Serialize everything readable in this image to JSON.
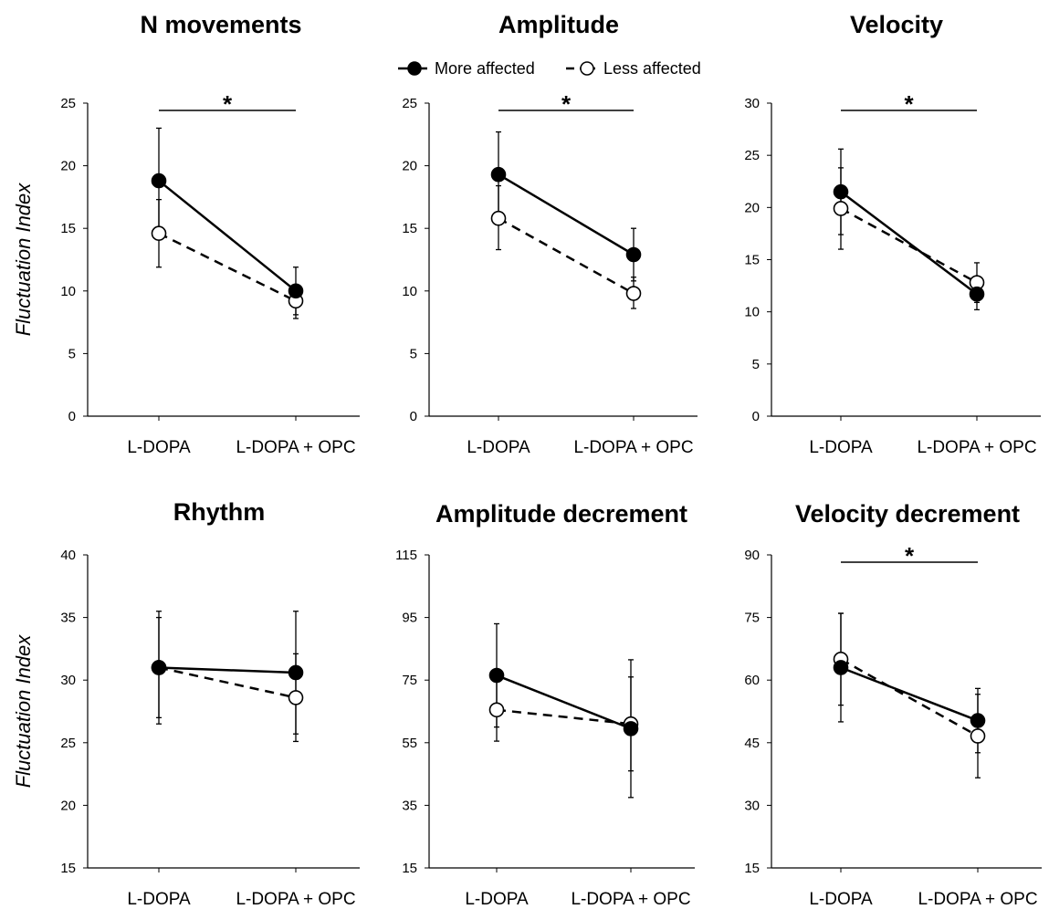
{
  "legend": {
    "more": "More affected",
    "less": "Less affected"
  },
  "chart_data": [
    {
      "type": "line",
      "title": "N movements",
      "ylabel": "Fluctuation Index",
      "categories": [
        "L-DOPA",
        "L-DOPA + OPC"
      ],
      "ylim": [
        0,
        25
      ],
      "yticks": [
        "0",
        "5",
        "10",
        "15",
        "20",
        "25"
      ],
      "significance": "*",
      "series": [
        {
          "name": "More affected",
          "values": [
            18.8,
            10.0
          ],
          "error_plus": [
            4.2,
            1.9
          ],
          "error_minus": [
            4.2,
            1.9
          ]
        },
        {
          "name": "Less affected",
          "values": [
            14.6,
            9.2
          ],
          "error_plus": [
            2.7,
            1.0
          ],
          "error_minus": [
            2.7,
            1.4
          ]
        }
      ]
    },
    {
      "type": "line",
      "title": "Amplitude",
      "ylabel": "",
      "categories": [
        "L-DOPA",
        "L-DOPA + OPC"
      ],
      "ylim": [
        0,
        25
      ],
      "yticks": [
        "0",
        "5",
        "10",
        "15",
        "20",
        "25"
      ],
      "significance": "*",
      "series": [
        {
          "name": "More affected",
          "values": [
            19.3,
            12.9
          ],
          "error_plus": [
            3.4,
            2.1
          ],
          "error_minus": [
            3.4,
            2.1
          ]
        },
        {
          "name": "Less affected",
          "values": [
            15.8,
            9.8
          ],
          "error_plus": [
            2.6,
            1.3
          ],
          "error_minus": [
            2.5,
            1.2
          ]
        }
      ]
    },
    {
      "type": "line",
      "title": "Velocity",
      "ylabel": "",
      "categories": [
        "L-DOPA",
        "L-DOPA + OPC"
      ],
      "ylim": [
        0,
        30
      ],
      "yticks": [
        "0",
        "5",
        "10",
        "15",
        "20",
        "25",
        "30"
      ],
      "significance": "*",
      "series": [
        {
          "name": "More affected",
          "values": [
            21.5,
            11.7
          ],
          "error_plus": [
            4.1,
            1.5
          ],
          "error_minus": [
            4.1,
            1.5
          ]
        },
        {
          "name": "Less affected",
          "values": [
            19.9,
            12.8
          ],
          "error_plus": [
            3.9,
            1.9
          ],
          "error_minus": [
            3.9,
            1.9
          ]
        }
      ]
    },
    {
      "type": "line",
      "title": "Rhythm",
      "ylabel": "Fluctuation Index",
      "categories": [
        "L-DOPA",
        "L-DOPA + OPC"
      ],
      "ylim": [
        15,
        40
      ],
      "yticks": [
        "15",
        "20",
        "25",
        "30",
        "35",
        "40"
      ],
      "significance": "",
      "series": [
        {
          "name": "More affected",
          "values": [
            31.0,
            30.6
          ],
          "error_plus": [
            4.5,
            4.9
          ],
          "error_minus": [
            4.5,
            4.9
          ]
        },
        {
          "name": "Less affected",
          "values": [
            31.0,
            28.6
          ],
          "error_plus": [
            4.0,
            3.5
          ],
          "error_minus": [
            4.0,
            3.5
          ]
        }
      ]
    },
    {
      "type": "line",
      "title": "Amplitude decrement",
      "ylabel": "",
      "categories": [
        "L-DOPA",
        "L-DOPA + OPC"
      ],
      "ylim": [
        15,
        115
      ],
      "yticks": [
        "15",
        "35",
        "55",
        "75",
        "95",
        "115"
      ],
      "significance": "",
      "series": [
        {
          "name": "More affected",
          "values": [
            76.5,
            59.5
          ],
          "error_plus": [
            16.5,
            22.0
          ],
          "error_minus": [
            16.5,
            22.0
          ]
        },
        {
          "name": "Less affected",
          "values": [
            65.5,
            61.0
          ],
          "error_plus": [
            10.0,
            15.0
          ],
          "error_minus": [
            10.0,
            15.0
          ]
        }
      ]
    },
    {
      "type": "line",
      "title": "Velocity decrement",
      "ylabel": "",
      "categories": [
        "L-DOPA",
        "L-DOPA + OPC"
      ],
      "ylim": [
        15,
        90
      ],
      "yticks": [
        "15",
        "30",
        "45",
        "60",
        "75",
        "90"
      ],
      "significance": "*",
      "series": [
        {
          "name": "More affected",
          "values": [
            63.0,
            50.3
          ],
          "error_plus": [
            13.0,
            7.7
          ],
          "error_minus": [
            13.0,
            7.7
          ]
        },
        {
          "name": "Less affected",
          "values": [
            65.0,
            46.6
          ],
          "error_plus": [
            11.0,
            10.0
          ],
          "error_minus": [
            11.0,
            10.0
          ]
        }
      ]
    }
  ]
}
